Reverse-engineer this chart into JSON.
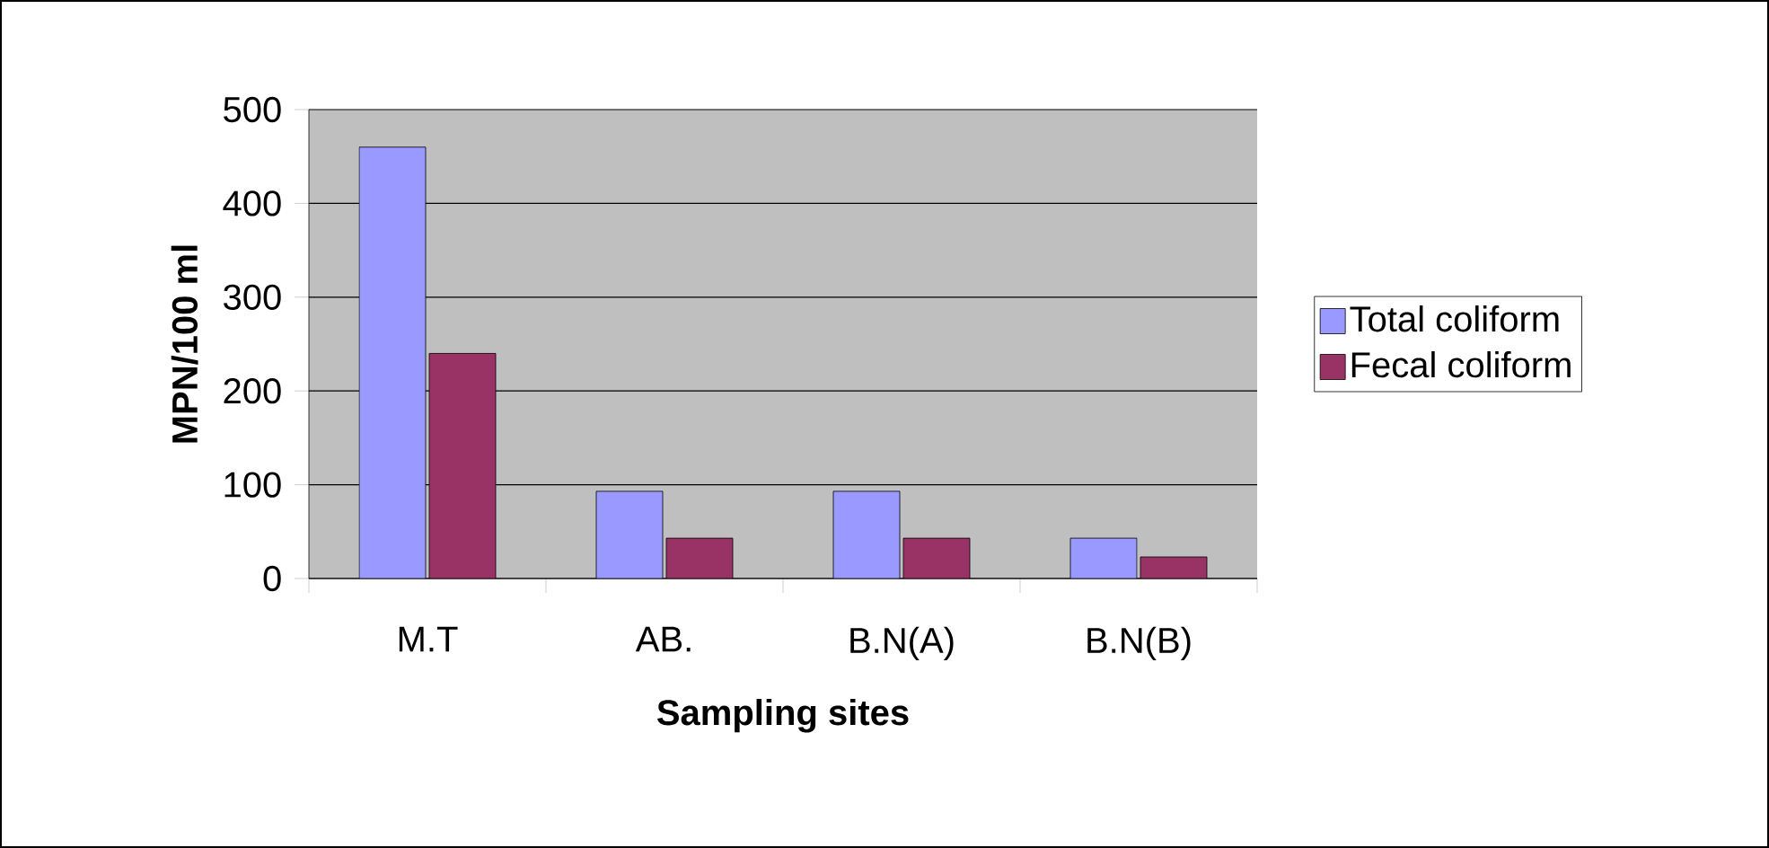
{
  "chart_data": {
    "type": "bar",
    "xlabel": "Sampling sites",
    "ylabel": "MPN/100 ml",
    "categories": [
      "M.T",
      "AB.",
      "B.N(A)",
      "B.N(B)"
    ],
    "series": [
      {
        "name": "Total coliform",
        "color": "#9999ff",
        "values": [
          460,
          93,
          93,
          43
        ]
      },
      {
        "name": "Fecal coliform",
        "color": "#993366",
        "values": [
          240,
          43,
          43,
          23
        ]
      }
    ],
    "ylim": [
      0,
      500
    ],
    "yticks": [
      0,
      100,
      200,
      300,
      400,
      500
    ],
    "grid": "y",
    "legend": "right"
  }
}
